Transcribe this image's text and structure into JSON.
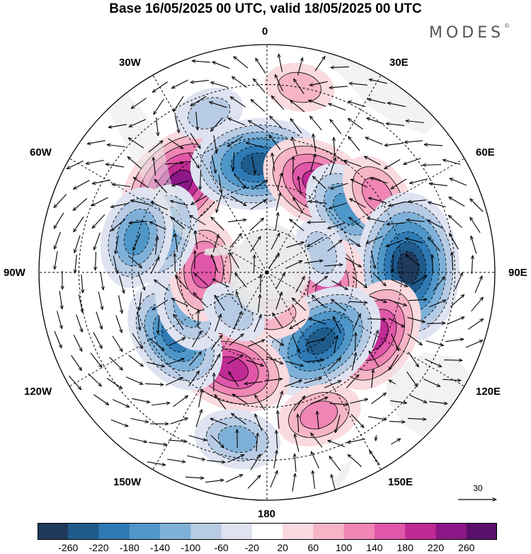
{
  "title": "Base 16/05/2025 00 UTC, valid 18/05/2025 00 UTC",
  "brand": "MODES",
  "brand_mark": "©",
  "lon_labels": {
    "n": "0",
    "e30": "30E",
    "e60": "60E",
    "e90": "90E",
    "e120": "120E",
    "e150": "150E",
    "s": "180",
    "w150": "150W",
    "w120": "120W",
    "w90": "90W",
    "w60": "60W",
    "w30": "30W"
  },
  "reference_vector": {
    "value": "30"
  },
  "colorbar": {
    "ticks": [
      "-260",
      "-220",
      "-180",
      "-140",
      "-100",
      "-60",
      "-20",
      "20",
      "60",
      "100",
      "140",
      "180",
      "220",
      "260"
    ],
    "colors": [
      "#1f3a5c",
      "#1f5c8c",
      "#2f7ab5",
      "#4f97c8",
      "#7fb1d8",
      "#b7cbe4",
      "#dfe3f1",
      "#ffffff",
      "#f9dadf",
      "#f5b5c6",
      "#ef86b5",
      "#e056a8",
      "#c02a94",
      "#8c1887",
      "#5a0f6e"
    ]
  },
  "map": {
    "projection": "south-polar-stereographic",
    "ocean_color": "#ffffff",
    "land_color": "#e8e8e8",
    "anomalies": [
      {
        "lon": -45,
        "lat": -48,
        "value": 250
      },
      {
        "lon": -5,
        "lat": -53,
        "value": -250
      },
      {
        "lon": 30,
        "lat": -55,
        "value": 190
      },
      {
        "lon": 52,
        "lat": -55,
        "value": -140
      },
      {
        "lon": 55,
        "lat": -45,
        "value": 120
      },
      {
        "lon": 88,
        "lat": -43,
        "value": -260
      },
      {
        "lon": 105,
        "lat": -68,
        "value": 160
      },
      {
        "lon": 120,
        "lat": -48,
        "value": 200
      },
      {
        "lon": 142,
        "lat": -60,
        "value": -250
      },
      {
        "lon": 160,
        "lat": -40,
        "value": 130
      },
      {
        "lon": -160,
        "lat": -55,
        "value": 200
      },
      {
        "lon": -170,
        "lat": -35,
        "value": -130
      },
      {
        "lon": -125,
        "lat": -52,
        "value": -210
      },
      {
        "lon": -115,
        "lat": -60,
        "value": -120
      },
      {
        "lon": -88,
        "lat": -68,
        "value": 170
      },
      {
        "lon": -70,
        "lat": -52,
        "value": -160
      },
      {
        "lon": -75,
        "lat": -45,
        "value": -140
      },
      {
        "lon": -20,
        "lat": -35,
        "value": -90
      },
      {
        "lon": 10,
        "lat": -30,
        "value": 90
      },
      {
        "lon": 170,
        "lat": -75,
        "value": 60
      },
      {
        "lon": -140,
        "lat": -72,
        "value": -70
      },
      {
        "lon": 70,
        "lat": -70,
        "value": -90
      }
    ]
  }
}
